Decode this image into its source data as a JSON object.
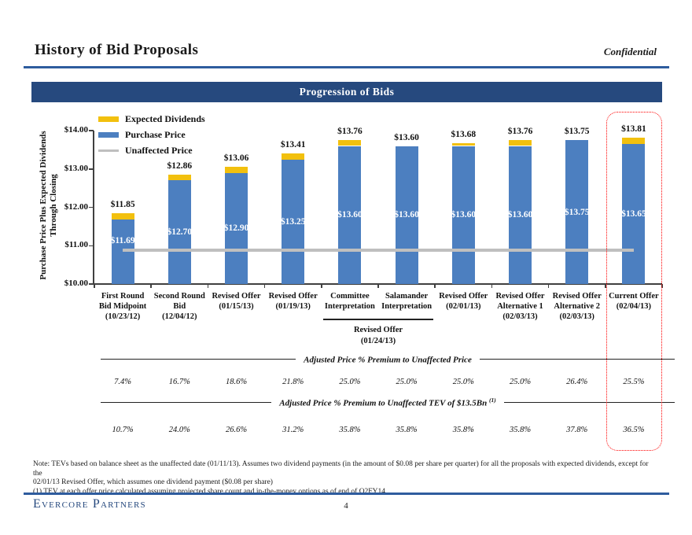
{
  "page": {
    "title": "History of Bid Proposals",
    "confidential": "Confidential",
    "banner": "Progression of Bids",
    "note_lines": [
      "Note: TEVs based on balance sheet as the unaffected date (01/11/13). Assumes two dividend payments (in the amount of $0.08 per share per quarter) for all the proposals with expected dividends, except for the",
      "02/01/13 Revised Offer, which assumes one dividend payment ($0.08 per share)",
      "(1) TEV at each offer price calculated assuming projected share count and in-the-money options as of end of Q2FY14",
      "4"
    ],
    "footer_brand": "Evercore Partners",
    "page_number": "4",
    "colors": {
      "navy_banner": "#26497E",
      "rule_blue": "#2E5C9E",
      "highlight_red": "#FF0000"
    }
  },
  "chart_data": {
    "type": "bar",
    "stacked": true,
    "title": "Progression of Bids",
    "ylabel_lines": [
      "Purchase Price Plus Expected Dividends",
      "Through Closing"
    ],
    "xlabel": "",
    "ylim": [
      10,
      14
    ],
    "grid": false,
    "legend_position": "top-left-inside",
    "yticks": [
      {
        "value": 14,
        "label": "$14.00"
      },
      {
        "value": 13,
        "label": "$13.00"
      },
      {
        "value": 12,
        "label": "$12.00"
      },
      {
        "value": 11,
        "label": "$11.00"
      },
      {
        "value": 10,
        "label": "$10.00"
      }
    ],
    "legend": [
      {
        "label": "Expected Dividends",
        "color": "#F2C00E",
        "style": "bar"
      },
      {
        "label": "Purchase Price",
        "color": "#4C7FC0",
        "style": "bar"
      },
      {
        "label": "Unaffected Price",
        "color": "#BFBFBF",
        "style": "line"
      }
    ],
    "unaffected_price": 10.88,
    "bars": [
      {
        "category_lines": [
          "First Round",
          "Bid Midpoint",
          "(10/23/12)"
        ],
        "purchase_price": 11.69,
        "expected_dividends": 0.16,
        "total": 11.85,
        "purchase_label": "$11.69",
        "total_label": "$11.85",
        "premium_to_unaffected_price": "7.4%",
        "premium_to_unaffected_tev": "10.7%",
        "highlighted": false
      },
      {
        "category_lines": [
          "Second Round",
          "Bid",
          "(12/04/12)"
        ],
        "purchase_price": 12.7,
        "expected_dividends": 0.16,
        "total": 12.86,
        "purchase_label": "$12.70",
        "total_label": "$12.86",
        "premium_to_unaffected_price": "16.7%",
        "premium_to_unaffected_tev": "24.0%",
        "highlighted": false
      },
      {
        "category_lines": [
          "Revised Offer",
          "(01/15/13)"
        ],
        "purchase_price": 12.9,
        "expected_dividends": 0.16,
        "total": 13.06,
        "purchase_label": "$12.90",
        "total_label": "$13.06",
        "premium_to_unaffected_price": "18.6%",
        "premium_to_unaffected_tev": "26.6%",
        "highlighted": false
      },
      {
        "category_lines": [
          "Revised Offer",
          "(01/19/13)"
        ],
        "purchase_price": 13.25,
        "expected_dividends": 0.16,
        "total": 13.41,
        "purchase_label": "$13.25",
        "total_label": "$13.41",
        "premium_to_unaffected_price": "21.8%",
        "premium_to_unaffected_tev": "31.2%",
        "highlighted": false
      },
      {
        "category_lines": [
          "Committee",
          "Interpretation"
        ],
        "purchase_price": 13.6,
        "expected_dividends": 0.16,
        "total": 13.76,
        "purchase_label": "$13.60",
        "total_label": "$13.76",
        "premium_to_unaffected_price": "25.0%",
        "premium_to_unaffected_tev": "35.8%",
        "highlighted": false
      },
      {
        "category_lines": [
          "Salamander",
          "Interpretation"
        ],
        "purchase_price": 13.6,
        "expected_dividends": 0,
        "total": 13.6,
        "purchase_label": "$13.60",
        "total_label": "$13.60",
        "premium_to_unaffected_price": "25.0%",
        "premium_to_unaffected_tev": "35.8%",
        "highlighted": false
      },
      {
        "category_lines": [
          "Revised Offer",
          "(02/01/13)"
        ],
        "purchase_price": 13.6,
        "expected_dividends": 0.08,
        "total": 13.68,
        "purchase_label": "$13.60",
        "total_label": "$13.68",
        "premium_to_unaffected_price": "25.0%",
        "premium_to_unaffected_tev": "35.8%",
        "highlighted": false
      },
      {
        "category_lines": [
          "Revised Offer",
          "Alternative 1",
          "(02/03/13)"
        ],
        "purchase_price": 13.6,
        "expected_dividends": 0.16,
        "total": 13.76,
        "purchase_label": "$13.60",
        "total_label": "$13.76",
        "premium_to_unaffected_price": "25.0%",
        "premium_to_unaffected_tev": "35.8%",
        "highlighted": false
      },
      {
        "category_lines": [
          "Revised Offer",
          "Alternative 2",
          "(02/03/13)"
        ],
        "purchase_price": 13.75,
        "expected_dividends": 0,
        "total": 13.75,
        "purchase_label": "$13.75",
        "total_label": "$13.75",
        "premium_to_unaffected_price": "26.4%",
        "premium_to_unaffected_tev": "37.8%",
        "highlighted": false
      },
      {
        "category_lines": [
          "Current Offer",
          "(02/04/13)"
        ],
        "purchase_price": 13.65,
        "expected_dividends": 0.16,
        "total": 13.81,
        "purchase_label": "$13.65",
        "total_label": "$13.81",
        "premium_to_unaffected_price": "25.5%",
        "premium_to_unaffected_tev": "36.5%",
        "highlighted": true
      }
    ],
    "subgroup": {
      "lines": [
        "Revised Offer",
        "(01/24/13)"
      ],
      "start_index": 4,
      "end_index": 5
    },
    "premium_rows": [
      {
        "title": "Adjusted Price % Premium to Unaffected Price",
        "superscript": ""
      },
      {
        "title": "Adjusted Price % Premium to Unaffected TEV of $13.5Bn",
        "superscript": "(1)"
      }
    ],
    "highlight": {
      "bar_index": 9,
      "color": "#FF0000"
    }
  }
}
